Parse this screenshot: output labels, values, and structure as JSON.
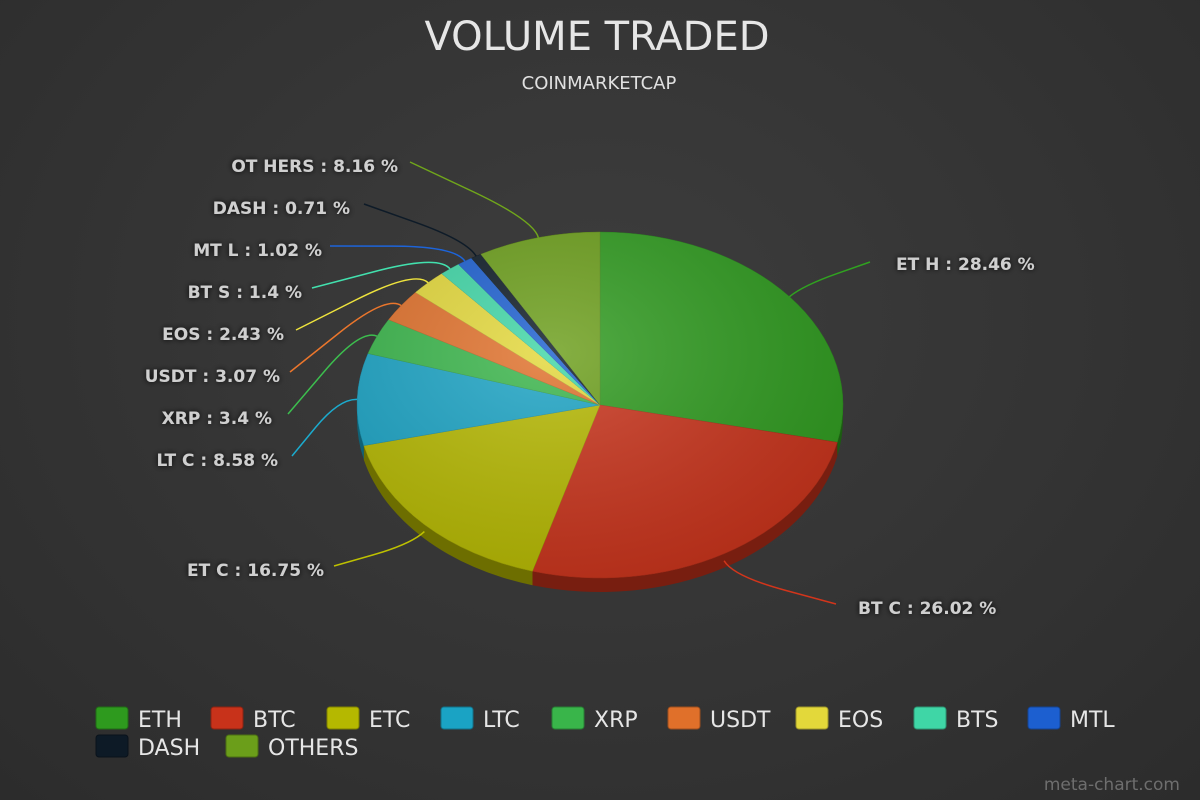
{
  "chart_data": {
    "type": "pie",
    "title": "VOLUME TRADED",
    "subtitle": "COINMARKETCAP",
    "slices": [
      {
        "name": "ETH",
        "value": 28.46,
        "label": "ET H : 28.46 %",
        "color": "#2e9a1e"
      },
      {
        "name": "BTC",
        "value": 26.02,
        "label": "BT C : 26.02 %",
        "color": "#c8321a"
      },
      {
        "name": "ETC",
        "value": 16.75,
        "label": "ET C : 16.75 %",
        "color": "#b5b800"
      },
      {
        "name": "LTC",
        "value": 8.58,
        "label": "LT C : 8.58 %",
        "color": "#1aa3c4"
      },
      {
        "name": "XRP",
        "value": 3.4,
        "label": "XRP : 3.4  %",
        "color": "#39b54a"
      },
      {
        "name": "USDT",
        "value": 3.07,
        "label": "USDT  : 3.07  %",
        "color": "#e0702a"
      },
      {
        "name": "EOS",
        "value": 2.43,
        "label": "EOS : 2.43  %",
        "color": "#e3d83a"
      },
      {
        "name": "BTS",
        "value": 1.4,
        "label": "BT S : 1.4  %",
        "color": "#3fd6a6"
      },
      {
        "name": "MTL",
        "value": 1.02,
        "label": "MT L : 1.02  %",
        "color": "#1c5fd0"
      },
      {
        "name": "DASH",
        "value": 0.71,
        "label": "DASH : 0.71  %",
        "color": "#0d1a26"
      },
      {
        "name": "OTHERS",
        "value": 8.16,
        "label": "OT HERS : 8.16  %",
        "color": "#6b9e1a"
      }
    ],
    "legend": {
      "placement": "bottom",
      "entries": [
        "ETH",
        "BTC",
        "ETC",
        "LTC",
        "XRP",
        "USDT",
        "EOS",
        "BTS",
        "MTL",
        "DASH",
        "OTHERS"
      ]
    }
  },
  "credit": "meta-chart.com"
}
